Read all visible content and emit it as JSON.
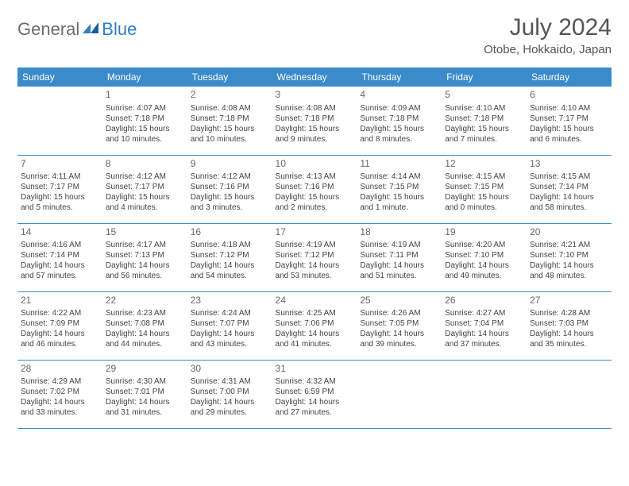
{
  "logo": {
    "text1": "General",
    "text2": "Blue"
  },
  "title": "July 2024",
  "location": "Otobe, Hokkaido, Japan",
  "weekdays": [
    "Sunday",
    "Monday",
    "Tuesday",
    "Wednesday",
    "Thursday",
    "Friday",
    "Saturday"
  ],
  "header_bg": "#3b8bca",
  "header_fg": "#ffffff",
  "border_color": "#3b8bca",
  "weeks": [
    [
      null,
      {
        "day": "1",
        "sunrise": "Sunrise: 4:07 AM",
        "sunset": "Sunset: 7:18 PM",
        "daylight1": "Daylight: 15 hours",
        "daylight2": "and 10 minutes."
      },
      {
        "day": "2",
        "sunrise": "Sunrise: 4:08 AM",
        "sunset": "Sunset: 7:18 PM",
        "daylight1": "Daylight: 15 hours",
        "daylight2": "and 10 minutes."
      },
      {
        "day": "3",
        "sunrise": "Sunrise: 4:08 AM",
        "sunset": "Sunset: 7:18 PM",
        "daylight1": "Daylight: 15 hours",
        "daylight2": "and 9 minutes."
      },
      {
        "day": "4",
        "sunrise": "Sunrise: 4:09 AM",
        "sunset": "Sunset: 7:18 PM",
        "daylight1": "Daylight: 15 hours",
        "daylight2": "and 8 minutes."
      },
      {
        "day": "5",
        "sunrise": "Sunrise: 4:10 AM",
        "sunset": "Sunset: 7:18 PM",
        "daylight1": "Daylight: 15 hours",
        "daylight2": "and 7 minutes."
      },
      {
        "day": "6",
        "sunrise": "Sunrise: 4:10 AM",
        "sunset": "Sunset: 7:17 PM",
        "daylight1": "Daylight: 15 hours",
        "daylight2": "and 6 minutes."
      }
    ],
    [
      {
        "day": "7",
        "sunrise": "Sunrise: 4:11 AM",
        "sunset": "Sunset: 7:17 PM",
        "daylight1": "Daylight: 15 hours",
        "daylight2": "and 5 minutes."
      },
      {
        "day": "8",
        "sunrise": "Sunrise: 4:12 AM",
        "sunset": "Sunset: 7:17 PM",
        "daylight1": "Daylight: 15 hours",
        "daylight2": "and 4 minutes."
      },
      {
        "day": "9",
        "sunrise": "Sunrise: 4:12 AM",
        "sunset": "Sunset: 7:16 PM",
        "daylight1": "Daylight: 15 hours",
        "daylight2": "and 3 minutes."
      },
      {
        "day": "10",
        "sunrise": "Sunrise: 4:13 AM",
        "sunset": "Sunset: 7:16 PM",
        "daylight1": "Daylight: 15 hours",
        "daylight2": "and 2 minutes."
      },
      {
        "day": "11",
        "sunrise": "Sunrise: 4:14 AM",
        "sunset": "Sunset: 7:15 PM",
        "daylight1": "Daylight: 15 hours",
        "daylight2": "and 1 minute."
      },
      {
        "day": "12",
        "sunrise": "Sunrise: 4:15 AM",
        "sunset": "Sunset: 7:15 PM",
        "daylight1": "Daylight: 15 hours",
        "daylight2": "and 0 minutes."
      },
      {
        "day": "13",
        "sunrise": "Sunrise: 4:15 AM",
        "sunset": "Sunset: 7:14 PM",
        "daylight1": "Daylight: 14 hours",
        "daylight2": "and 58 minutes."
      }
    ],
    [
      {
        "day": "14",
        "sunrise": "Sunrise: 4:16 AM",
        "sunset": "Sunset: 7:14 PM",
        "daylight1": "Daylight: 14 hours",
        "daylight2": "and 57 minutes."
      },
      {
        "day": "15",
        "sunrise": "Sunrise: 4:17 AM",
        "sunset": "Sunset: 7:13 PM",
        "daylight1": "Daylight: 14 hours",
        "daylight2": "and 56 minutes."
      },
      {
        "day": "16",
        "sunrise": "Sunrise: 4:18 AM",
        "sunset": "Sunset: 7:12 PM",
        "daylight1": "Daylight: 14 hours",
        "daylight2": "and 54 minutes."
      },
      {
        "day": "17",
        "sunrise": "Sunrise: 4:19 AM",
        "sunset": "Sunset: 7:12 PM",
        "daylight1": "Daylight: 14 hours",
        "daylight2": "and 53 minutes."
      },
      {
        "day": "18",
        "sunrise": "Sunrise: 4:19 AM",
        "sunset": "Sunset: 7:11 PM",
        "daylight1": "Daylight: 14 hours",
        "daylight2": "and 51 minutes."
      },
      {
        "day": "19",
        "sunrise": "Sunrise: 4:20 AM",
        "sunset": "Sunset: 7:10 PM",
        "daylight1": "Daylight: 14 hours",
        "daylight2": "and 49 minutes."
      },
      {
        "day": "20",
        "sunrise": "Sunrise: 4:21 AM",
        "sunset": "Sunset: 7:10 PM",
        "daylight1": "Daylight: 14 hours",
        "daylight2": "and 48 minutes."
      }
    ],
    [
      {
        "day": "21",
        "sunrise": "Sunrise: 4:22 AM",
        "sunset": "Sunset: 7:09 PM",
        "daylight1": "Daylight: 14 hours",
        "daylight2": "and 46 minutes."
      },
      {
        "day": "22",
        "sunrise": "Sunrise: 4:23 AM",
        "sunset": "Sunset: 7:08 PM",
        "daylight1": "Daylight: 14 hours",
        "daylight2": "and 44 minutes."
      },
      {
        "day": "23",
        "sunrise": "Sunrise: 4:24 AM",
        "sunset": "Sunset: 7:07 PM",
        "daylight1": "Daylight: 14 hours",
        "daylight2": "and 43 minutes."
      },
      {
        "day": "24",
        "sunrise": "Sunrise: 4:25 AM",
        "sunset": "Sunset: 7:06 PM",
        "daylight1": "Daylight: 14 hours",
        "daylight2": "and 41 minutes."
      },
      {
        "day": "25",
        "sunrise": "Sunrise: 4:26 AM",
        "sunset": "Sunset: 7:05 PM",
        "daylight1": "Daylight: 14 hours",
        "daylight2": "and 39 minutes."
      },
      {
        "day": "26",
        "sunrise": "Sunrise: 4:27 AM",
        "sunset": "Sunset: 7:04 PM",
        "daylight1": "Daylight: 14 hours",
        "daylight2": "and 37 minutes."
      },
      {
        "day": "27",
        "sunrise": "Sunrise: 4:28 AM",
        "sunset": "Sunset: 7:03 PM",
        "daylight1": "Daylight: 14 hours",
        "daylight2": "and 35 minutes."
      }
    ],
    [
      {
        "day": "28",
        "sunrise": "Sunrise: 4:29 AM",
        "sunset": "Sunset: 7:02 PM",
        "daylight1": "Daylight: 14 hours",
        "daylight2": "and 33 minutes."
      },
      {
        "day": "29",
        "sunrise": "Sunrise: 4:30 AM",
        "sunset": "Sunset: 7:01 PM",
        "daylight1": "Daylight: 14 hours",
        "daylight2": "and 31 minutes."
      },
      {
        "day": "30",
        "sunrise": "Sunrise: 4:31 AM",
        "sunset": "Sunset: 7:00 PM",
        "daylight1": "Daylight: 14 hours",
        "daylight2": "and 29 minutes."
      },
      {
        "day": "31",
        "sunrise": "Sunrise: 4:32 AM",
        "sunset": "Sunset: 6:59 PM",
        "daylight1": "Daylight: 14 hours",
        "daylight2": "and 27 minutes."
      },
      null,
      null,
      null
    ]
  ]
}
